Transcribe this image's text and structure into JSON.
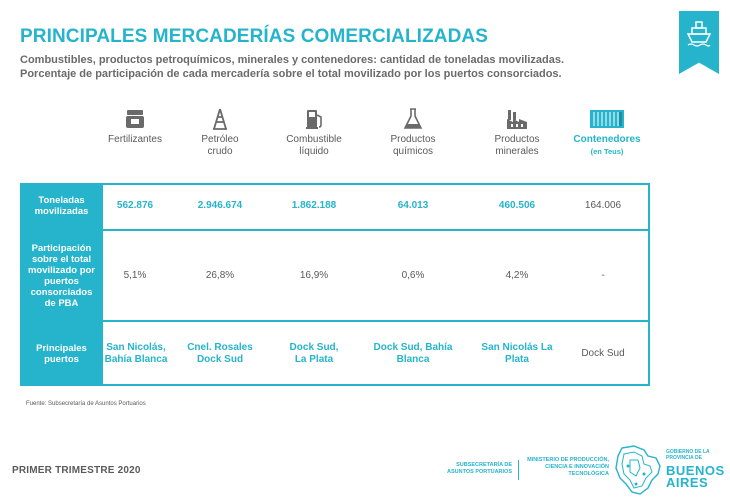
{
  "header": {
    "title": "PRINCIPALES MERCADERÍAS COMERCIALIZADAS",
    "subtitle_line1": "Combustibles, productos petroquímicos, minerales y contenedores: cantidad de toneladas movilizadas.",
    "subtitle_line2": "Porcentaje de participación de cada mercadería sobre el total movilizado por los puertos consorciados."
  },
  "columns": [
    {
      "label1": "Fertilizantes",
      "label2": "",
      "icon": "fertilizer-bag-icon"
    },
    {
      "label1": "Petróleo",
      "label2": "crudo",
      "icon": "oil-derrick-icon"
    },
    {
      "label1": "Combustible",
      "label2": "líquido",
      "icon": "fuel-pump-icon"
    },
    {
      "label1": "Productos",
      "label2": "químicos",
      "icon": "flask-icon"
    },
    {
      "label1": "Productos",
      "label2": "minerales",
      "icon": "factory-icon"
    },
    {
      "label1": "Contenedores",
      "label2": "(en Teus)",
      "icon": "container-icon"
    }
  ],
  "rows": {
    "toneladas": {
      "label": "Toneladas movilizadas",
      "values": [
        "562.876",
        "2.946.674",
        "1.862.188",
        "64.013",
        "460.506",
        "164.006"
      ]
    },
    "participacion": {
      "label": "Participación sobre el total movilizado por puertos consorciados de PBA",
      "values": [
        "5,1%",
        "26,8%",
        "16,9%",
        "0,6%",
        "4,2%",
        "-"
      ]
    },
    "puertos": {
      "label": "Principales puertos",
      "values": [
        "San Nicolás, Bahía Blanca",
        "Cnel. Rosales Dock Sud",
        "Dock Sud, La Plata",
        "Dock Sud, Bahía Blanca",
        "San Nicolás La Plata",
        "Dock Sud"
      ]
    }
  },
  "footer": {
    "source": "Fuente: Subsecretaría de Asuntos Portuarios",
    "period": "PRIMER TRIMESTRE 2020",
    "subsecretaria": "SUBSECRETARÍA DE ASUNTOS PORTUARIOS",
    "ministerio": "MINISTERIO DE PRODUCCIÓN, CIENCIA E INNOVACIÓN TECNOLÓGICA",
    "gobierno_small": "GOBIERNO DE LA PROVINCIA DE",
    "gobierno_big1": "BUENOS",
    "gobierno_big2": "AIRES"
  },
  "colors": {
    "accent": "#25b4cc",
    "text": "#5a5a5a"
  }
}
